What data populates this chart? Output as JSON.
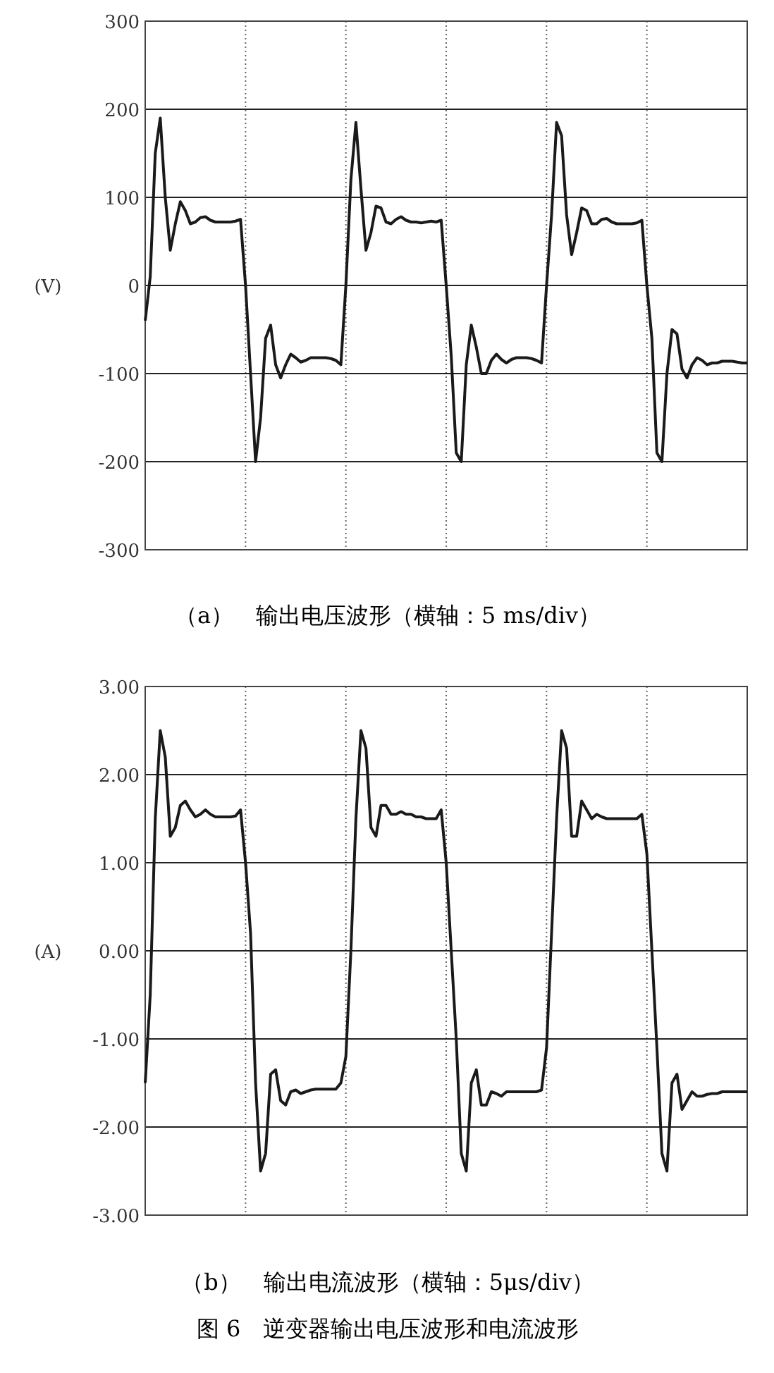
{
  "chart_data": [
    {
      "type": "line",
      "title": "（a）　输出电压波形（横轴：5 ms/div）",
      "ylabel": "(V)",
      "categories": [
        null,
        null,
        null,
        null,
        null,
        null,
        null,
        null,
        null,
        null,
        null,
        null,
        null,
        null,
        null,
        null,
        null,
        null,
        null,
        null,
        null,
        null,
        null,
        null,
        null,
        null,
        null,
        null,
        null,
        null,
        null,
        null,
        null,
        null,
        null,
        null,
        null,
        null,
        null,
        null,
        null,
        null,
        null,
        null,
        null,
        null,
        null,
        null,
        null,
        null,
        null,
        null,
        null,
        null,
        null,
        null,
        null,
        null,
        null,
        null,
        null,
        null,
        null,
        null,
        null,
        null,
        null,
        null,
        null,
        null,
        null,
        null,
        null,
        null,
        null,
        null,
        null,
        null,
        null,
        null,
        null,
        null,
        null,
        null,
        null,
        null,
        null,
        null,
        null,
        null,
        null,
        null,
        null,
        null,
        null,
        null,
        null,
        null,
        null,
        null,
        null,
        null,
        null,
        null,
        null,
        null,
        null,
        null,
        null,
        null,
        null,
        null,
        null,
        null,
        null,
        null,
        null,
        null,
        null,
        null,
        null
      ],
      "series": [
        {
          "color": "#1a1a1a",
          "values": [
            -40,
            10,
            150,
            190,
            100,
            40,
            70,
            95,
            85,
            70,
            72,
            77,
            78,
            74,
            72,
            72,
            72,
            72,
            73,
            75,
            0,
            -100,
            -200,
            -150,
            -60,
            -45,
            -90,
            -105,
            -90,
            -78,
            -82,
            -87,
            -85,
            -82,
            -82,
            -82,
            -82,
            -83,
            -85,
            -90,
            0,
            120,
            185,
            110,
            40,
            60,
            90,
            88,
            72,
            70,
            75,
            78,
            74,
            72,
            72,
            71,
            72,
            73,
            72,
            74,
            0,
            -80,
            -190,
            -200,
            -90,
            -45,
            -70,
            -100,
            -100,
            -85,
            -78,
            -84,
            -88,
            -84,
            -82,
            -82,
            -82,
            -83,
            -85,
            -88,
            0,
            80,
            185,
            170,
            80,
            35,
            60,
            88,
            85,
            70,
            70,
            75,
            76,
            72,
            70,
            70,
            70,
            70,
            71,
            74,
            0,
            -60,
            -190,
            -200,
            -100,
            -50,
            -55,
            -95,
            -105,
            -90,
            -82,
            -85,
            -90,
            -88,
            -88,
            -86,
            -86,
            -86,
            -87,
            -88,
            -88
          ]
        }
      ],
      "ylim": [
        -300,
        300
      ],
      "yticks": [
        300,
        200,
        100,
        0,
        -100,
        -200,
        -300
      ],
      "grid": true,
      "tick_labels": "y",
      "marker": "none",
      "line_style": "solid"
    },
    {
      "type": "line",
      "title": "（b）　输出电流波形（横轴：5μs/div）",
      "ylabel": "(A)",
      "categories": [
        null,
        null,
        null,
        null,
        null,
        null,
        null,
        null,
        null,
        null,
        null,
        null,
        null,
        null,
        null,
        null,
        null,
        null,
        null,
        null,
        null,
        null,
        null,
        null,
        null,
        null,
        null,
        null,
        null,
        null,
        null,
        null,
        null,
        null,
        null,
        null,
        null,
        null,
        null,
        null,
        null,
        null,
        null,
        null,
        null,
        null,
        null,
        null,
        null,
        null,
        null,
        null,
        null,
        null,
        null,
        null,
        null,
        null,
        null,
        null,
        null,
        null,
        null,
        null,
        null,
        null,
        null,
        null,
        null,
        null,
        null,
        null,
        null,
        null,
        null,
        null,
        null,
        null,
        null,
        null,
        null,
        null,
        null,
        null,
        null,
        null,
        null,
        null,
        null,
        null,
        null,
        null,
        null,
        null,
        null,
        null,
        null,
        null,
        null,
        null,
        null,
        null,
        null,
        null,
        null,
        null,
        null,
        null,
        null,
        null,
        null,
        null,
        null,
        null,
        null,
        null,
        null,
        null,
        null,
        null,
        null
      ],
      "series": [
        {
          "color": "#1a1a1a",
          "values": [
            -1.5,
            -0.5,
            1.5,
            2.5,
            2.2,
            1.3,
            1.4,
            1.65,
            1.7,
            1.6,
            1.52,
            1.55,
            1.6,
            1.55,
            1.52,
            1.52,
            1.52,
            1.52,
            1.53,
            1.6,
            1.0,
            0.2,
            -1.5,
            -2.5,
            -2.3,
            -1.4,
            -1.35,
            -1.7,
            -1.75,
            -1.6,
            -1.58,
            -1.62,
            -1.6,
            -1.58,
            -1.57,
            -1.57,
            -1.57,
            -1.57,
            -1.57,
            -1.5,
            -1.2,
            0.0,
            1.5,
            2.5,
            2.3,
            1.4,
            1.3,
            1.65,
            1.65,
            1.55,
            1.55,
            1.58,
            1.55,
            1.55,
            1.52,
            1.52,
            1.5,
            1.5,
            1.5,
            1.6,
            1.0,
            0.0,
            -1.0,
            -2.3,
            -2.5,
            -1.5,
            -1.35,
            -1.75,
            -1.75,
            -1.6,
            -1.62,
            -1.65,
            -1.6,
            -1.6,
            -1.6,
            -1.6,
            -1.6,
            -1.6,
            -1.6,
            -1.58,
            -1.1,
            0.2,
            1.5,
            2.5,
            2.3,
            1.3,
            1.3,
            1.7,
            1.6,
            1.5,
            1.55,
            1.52,
            1.5,
            1.5,
            1.5,
            1.5,
            1.5,
            1.5,
            1.5,
            1.55,
            1.1,
            0.0,
            -1.1,
            -2.3,
            -2.5,
            -1.5,
            -1.4,
            -1.8,
            -1.7,
            -1.6,
            -1.65,
            -1.65,
            -1.63,
            -1.62,
            -1.62,
            -1.6,
            -1.6,
            -1.6,
            -1.6,
            -1.6,
            -1.6
          ]
        }
      ],
      "ylim": [
        -3,
        3
      ],
      "yticks": [
        {
          "value": 3,
          "label": "3.00"
        },
        {
          "value": 2,
          "label": "2.00"
        },
        {
          "value": 1,
          "label": "1.00"
        },
        {
          "value": 0,
          "label": "0.00"
        },
        {
          "value": -1,
          "label": "-1.00"
        },
        {
          "value": -2,
          "label": "-2.00"
        },
        {
          "value": -3,
          "label": "-3.00"
        }
      ],
      "grid": true,
      "tick_labels": "y",
      "marker": "none",
      "line_style": "solid",
      "annotations": [
        "图 6　逆变器输出电压波形和电流波形"
      ]
    }
  ]
}
